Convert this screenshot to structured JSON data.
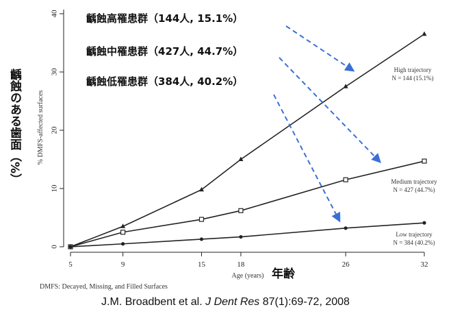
{
  "chart_data": {
    "type": "line",
    "title": "",
    "xlabel": "Age (years)",
    "ylabel": "% DMFS-affected surfaces",
    "x": [
      5,
      9,
      15,
      18,
      26,
      32
    ],
    "xlim": [
      5,
      32
    ],
    "ylim": [
      0,
      40
    ],
    "yticks": [
      0,
      10,
      20,
      30,
      40
    ],
    "grid": false,
    "series": [
      {
        "name": "High trajectory",
        "n_label": "N = 144 (15.1%)",
        "marker": "triangle",
        "values": [
          0,
          3.5,
          9.8,
          15.0,
          27.5,
          36.5
        ]
      },
      {
        "name": "Medium trajectory",
        "n_label": "N = 427 (44.7%)",
        "marker": "square",
        "values": [
          0,
          2.5,
          4.7,
          6.2,
          11.5,
          14.7
        ]
      },
      {
        "name": "Low trajectory",
        "n_label": "N = 384 (40.2%)",
        "marker": "dot",
        "values": [
          0,
          0.5,
          1.3,
          1.7,
          3.2,
          4.1
        ]
      }
    ],
    "annotations": [
      {
        "text": "齲蝕高罹患群（144人, 15.1%）",
        "target_series": 0
      },
      {
        "text": "齲蝕中罹患群（427人, 44.7%）",
        "target_series": 1
      },
      {
        "text": "齲蝕低罹患群（384人, 40.2%）",
        "target_series": 2
      }
    ],
    "arrow_color": "#3a6fd8",
    "line_color": "#222222"
  },
  "labels": {
    "ylabel_jp": "齲蝕のある歯面（%）",
    "xlabel_jp": "年齢",
    "footnote": "DMFS: Decayed, Missing, and Filled Surfaces"
  },
  "citation": {
    "authors": "J.M. Broadbent et al.",
    "journal": "J Dent Res",
    "details": "87(1):69-72, 2008"
  }
}
